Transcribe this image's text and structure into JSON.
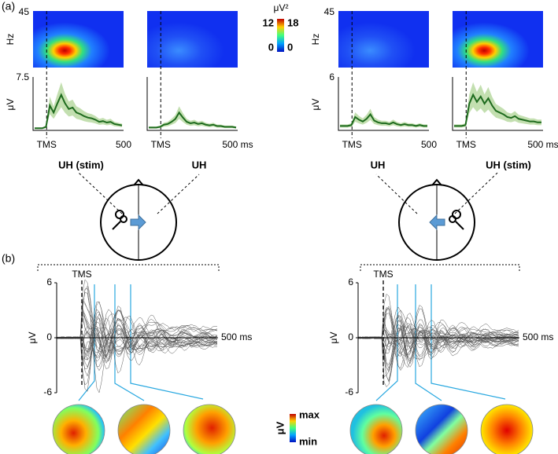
{
  "panel_labels": [
    "(a)",
    "(b)"
  ],
  "a": {
    "colorbar": {
      "unit": "μV²",
      "max_left": 12,
      "max_right": 18,
      "min_left": 0,
      "min_right": 0
    },
    "plots": [
      {
        "hz_max": 45,
        "hz_label": "Hz",
        "uv_max": 7.5,
        "uv_label": "μV",
        "x_start": "TMS",
        "x_end": "500",
        "power": "high",
        "trace": [
          0.3,
          0.3,
          0.3,
          0.5,
          3.5,
          2.5,
          3.8,
          5.0,
          3.8,
          3.0,
          3.2,
          2.5,
          2.3,
          2.0,
          1.8,
          1.7,
          1.5,
          1.2,
          1.3,
          1.1,
          1.2,
          0.9,
          0.8,
          0.7
        ]
      },
      {
        "uv_max": 7.5,
        "x_start": "TMS",
        "x_end": "500 ms",
        "power": "low",
        "trace": [
          0.4,
          0.4,
          0.4,
          0.5,
          0.8,
          0.9,
          1.2,
          1.6,
          2.5,
          1.8,
          1.2,
          1.0,
          1.1,
          0.9,
          1.0,
          0.8,
          0.7,
          0.8,
          0.6,
          0.6,
          0.5,
          0.5,
          0.5,
          0.4
        ]
      },
      {
        "hz_max": 45,
        "hz_label": "Hz",
        "uv_max": 6,
        "uv_label": "μV",
        "x_start": "TMS",
        "x_end": "500",
        "power": "low",
        "trace": [
          0.5,
          0.5,
          0.5,
          0.6,
          1.5,
          1.2,
          1.0,
          1.3,
          1.8,
          1.1,
          0.9,
          0.8,
          0.8,
          0.7,
          0.9,
          0.7,
          0.6,
          0.7,
          0.6,
          0.6,
          0.5,
          0.6,
          0.5,
          0.5
        ]
      },
      {
        "uv_max": 6,
        "x_start": "TMS",
        "x_end": "500 ms",
        "power": "high",
        "trace": [
          0.5,
          0.5,
          0.5,
          0.6,
          3.0,
          4.0,
          3.2,
          3.8,
          3.0,
          3.6,
          2.8,
          2.2,
          2.0,
          1.8,
          1.5,
          1.4,
          1.6,
          1.3,
          1.2,
          1.1,
          1.0,
          1.0,
          0.9,
          0.9
        ]
      }
    ],
    "heads": [
      {
        "left_label": "UH (stim)",
        "right_label": "UH"
      },
      {
        "left_label": "UH",
        "right_label": "UH (stim)"
      }
    ]
  },
  "b": {
    "plots": [
      {
        "tms": "TMS",
        "y_label": "μV",
        "yticks": [
          6,
          0,
          -6
        ],
        "x_end": "500 ms"
      },
      {
        "tms": "TMS",
        "y_label": "μV",
        "yticks": [
          6,
          0,
          -6
        ],
        "x_end": "500 ms"
      }
    ],
    "colorbar": {
      "unit": "μV",
      "max": "max",
      "min": "min"
    }
  }
}
